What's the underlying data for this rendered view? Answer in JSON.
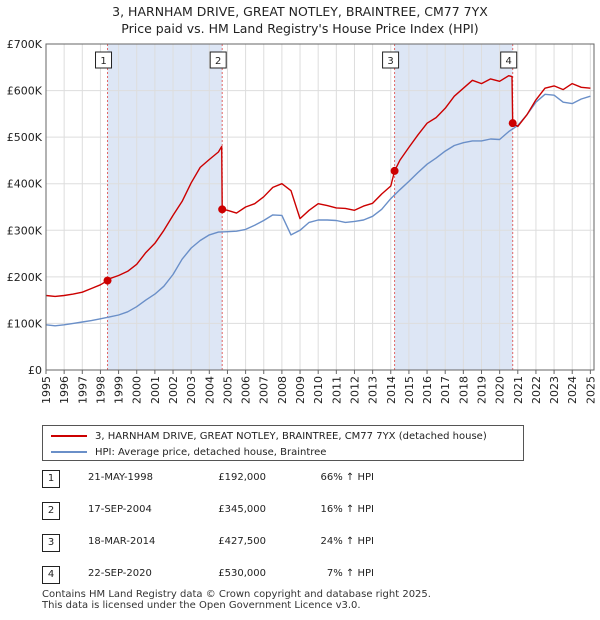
{
  "colors": {
    "property": "#cc0000",
    "hpi": "#6a8fc8",
    "shade": "#dde6f5",
    "marker_line": "#e06666",
    "grid": "#dddddd",
    "axis": "#666666"
  },
  "title": {
    "line1": "3, HARNHAM DRIVE, GREAT NOTLEY, BRAINTREE, CM77 7YX",
    "line2": "Price paid vs. HM Land Registry's House Price Index (HPI)"
  },
  "legend": {
    "property": "3, HARNHAM DRIVE, GREAT NOTLEY, BRAINTREE, CM77 7YX (detached house)",
    "hpi": "HPI: Average price, detached house, Braintree"
  },
  "sales": [
    {
      "num": "1",
      "date": "21-MAY-1998",
      "price": "£192,000",
      "hpi": "66% ↑ HPI"
    },
    {
      "num": "2",
      "date": "17-SEP-2004",
      "price": "£345,000",
      "hpi": "16% ↑ HPI"
    },
    {
      "num": "3",
      "date": "18-MAR-2014",
      "price": "£427,500",
      "hpi": "24% ↑ HPI"
    },
    {
      "num": "4",
      "date": "22-SEP-2020",
      "price": "£530,000",
      "hpi": "7% ↑ HPI"
    }
  ],
  "footer": {
    "line1": "Contains HM Land Registry data © Crown copyright and database right 2025.",
    "line2": "This data is licensed under the Open Government Licence v3.0."
  },
  "chart_data": {
    "type": "line",
    "title": "Price paid vs. HM Land Registry's House Price Index (HPI)",
    "xlabel": "",
    "ylabel": "",
    "xlim": [
      1995,
      2025.2
    ],
    "ylim": [
      0,
      700000
    ],
    "y_ticks": [
      0,
      100000,
      200000,
      300000,
      400000,
      500000,
      600000,
      700000
    ],
    "y_tick_labels": [
      "£0",
      "£100K",
      "£200K",
      "£300K",
      "£400K",
      "£500K",
      "£600K",
      "£700K"
    ],
    "x_ticks": [
      1995,
      1996,
      1997,
      1998,
      1999,
      2000,
      2001,
      2002,
      2003,
      2004,
      2005,
      2006,
      2007,
      2008,
      2009,
      2010,
      2011,
      2012,
      2013,
      2014,
      2015,
      2016,
      2017,
      2018,
      2019,
      2020,
      2021,
      2022,
      2023,
      2024,
      2025
    ],
    "x_tick_labels": [
      "1995",
      "1996",
      "1997",
      "1998",
      "1999",
      "2000",
      "2001",
      "2002",
      "2003",
      "2004",
      "2005",
      "2006",
      "2007",
      "2008",
      "2009",
      "2010",
      "2011",
      "2012",
      "2013",
      "2014",
      "2015",
      "2016",
      "2017",
      "2018",
      "2019",
      "2020",
      "2021",
      "2022",
      "2023",
      "2024",
      "2025"
    ],
    "sale_markers": [
      {
        "label": "1",
        "x": 1998.39,
        "y": 192000
      },
      {
        "label": "2",
        "x": 2004.71,
        "y": 345000
      },
      {
        "label": "3",
        "x": 2014.21,
        "y": 427500
      },
      {
        "label": "4",
        "x": 2020.72,
        "y": 530000
      }
    ],
    "series": [
      {
        "name": "3, HARNHAM DRIVE, GREAT NOTLEY, BRAINTREE, CM77 7YX (detached house)",
        "color": "#cc0000",
        "x": [
          1995,
          1995.5,
          1996,
          1996.5,
          1997,
          1997.5,
          1998,
          1998.39,
          1998.5,
          1999,
          1999.5,
          2000,
          2000.5,
          2001,
          2001.5,
          2002,
          2002.5,
          2003,
          2003.5,
          2004,
          2004.5,
          2004.68,
          2004.71,
          2005,
          2005.5,
          2006,
          2006.5,
          2007,
          2007.5,
          2008,
          2008.5,
          2009,
          2009.5,
          2010,
          2010.5,
          2011,
          2011.5,
          2012,
          2012.5,
          2013,
          2013.5,
          2014,
          2014.21,
          2014.5,
          2015,
          2015.5,
          2016,
          2016.5,
          2017,
          2017.5,
          2018,
          2018.5,
          2019,
          2019.5,
          2020,
          2020.5,
          2020.68,
          2020.72,
          2021,
          2021.5,
          2022,
          2022.5,
          2023,
          2023.5,
          2024,
          2024.5,
          2025
        ],
        "y": [
          160000,
          158000,
          160000,
          163000,
          167000,
          175000,
          183000,
          192000,
          196000,
          203000,
          212000,
          227000,
          252000,
          272000,
          300000,
          332000,
          362000,
          402000,
          435000,
          452000,
          468000,
          480000,
          345000,
          343000,
          337000,
          350000,
          357000,
          372000,
          392000,
          400000,
          385000,
          325000,
          343000,
          357000,
          353000,
          348000,
          347000,
          343000,
          352000,
          358000,
          378000,
          395000,
          427500,
          450000,
          478000,
          505000,
          530000,
          542000,
          562000,
          588000,
          605000,
          622000,
          615000,
          625000,
          620000,
          632000,
          630000,
          530000,
          523000,
          548000,
          580000,
          605000,
          610000,
          602000,
          615000,
          607000,
          605000
        ]
      },
      {
        "name": "HPI: Average price, detached house, Braintree",
        "color": "#6a8fc8",
        "x": [
          1995,
          1995.5,
          1996,
          1996.5,
          1997,
          1997.5,
          1998,
          1998.5,
          1999,
          1999.5,
          2000,
          2000.5,
          2001,
          2001.5,
          2002,
          2002.5,
          2003,
          2003.5,
          2004,
          2004.5,
          2005,
          2005.5,
          2006,
          2006.5,
          2007,
          2007.5,
          2008,
          2008.5,
          2009,
          2009.5,
          2010,
          2010.5,
          2011,
          2011.5,
          2012,
          2012.5,
          2013,
          2013.5,
          2014,
          2014.5,
          2015,
          2015.5,
          2016,
          2016.5,
          2017,
          2017.5,
          2018,
          2018.5,
          2019,
          2019.5,
          2020,
          2020.5,
          2021,
          2021.5,
          2022,
          2022.5,
          2023,
          2023.5,
          2024,
          2024.5,
          2025
        ],
        "y": [
          97000,
          95000,
          97000,
          100000,
          103000,
          106000,
          110000,
          114000,
          118000,
          125000,
          136000,
          150000,
          163000,
          180000,
          205000,
          238000,
          262000,
          278000,
          290000,
          296000,
          297000,
          298000,
          302000,
          311000,
          321000,
          333000,
          332000,
          290000,
          300000,
          317000,
          322000,
          322000,
          321000,
          317000,
          319000,
          322000,
          330000,
          345000,
          368000,
          387000,
          405000,
          424000,
          442000,
          455000,
          470000,
          482000,
          488000,
          492000,
          492000,
          496000,
          495000,
          512000,
          525000,
          548000,
          575000,
          592000,
          590000,
          575000,
          572000,
          582000,
          588000
        ]
      }
    ]
  }
}
